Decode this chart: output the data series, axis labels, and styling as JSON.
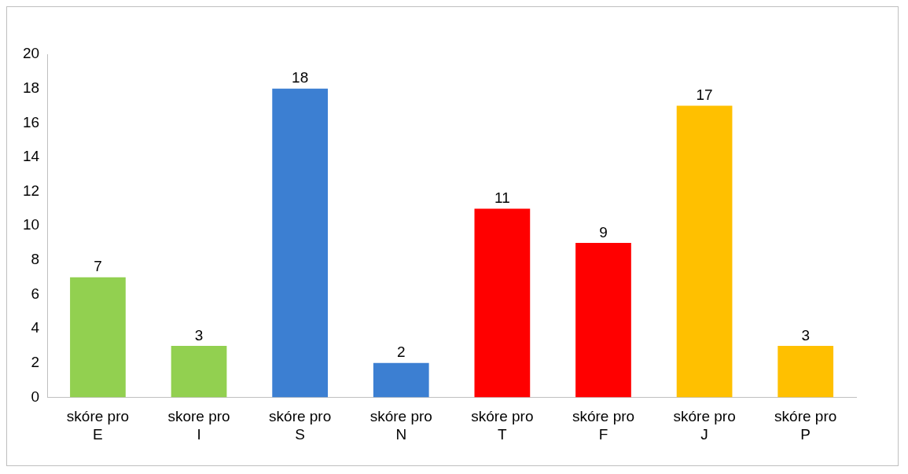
{
  "chart_data": {
    "type": "bar",
    "categories": [
      "skóre pro E",
      "skore pro I",
      "skóre pro S",
      "skóre pro N",
      "skóre pro T",
      "skóre pro F",
      "skóre pro J",
      "skóre pro P"
    ],
    "values": [
      7,
      3,
      18,
      2,
      11,
      9,
      17,
      3
    ],
    "colors": [
      "#92d050",
      "#92d050",
      "#3c7fd2",
      "#3c7fd2",
      "#ff0000",
      "#ff0000",
      "#ffc000",
      "#ffc000"
    ],
    "ylim": [
      0,
      20
    ],
    "yticks": [
      0,
      2,
      4,
      6,
      8,
      10,
      12,
      14,
      16,
      18,
      20
    ],
    "grid": false,
    "legend": false,
    "data_labels": true
  }
}
